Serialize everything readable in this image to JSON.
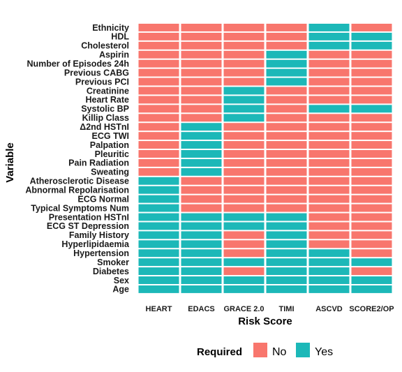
{
  "chart_data": {
    "type": "heatmap",
    "xlabel": "Risk Score",
    "ylabel": "Variable",
    "x_categories": [
      "HEART",
      "EDACS",
      "GRACE 2.0",
      "TIMI",
      "ASCVD",
      "SCORE2/OP"
    ],
    "y_categories_top_to_bottom": [
      "Ethnicity",
      "HDL",
      "Cholesterol",
      "Aspirin",
      "Number of Episodes 24h",
      "Previous CABG",
      "Previous PCI",
      "Creatinine",
      "Heart Rate",
      "Systolic BP",
      "Killip Class",
      "Δ2nd HSTnI",
      "ECG TWI",
      "Palpation",
      "Pleuritic",
      "Pain Radiation",
      "Sweating",
      "Atherosclerotic Disease",
      "Abnormal Repolarisation",
      "ECG Normal",
      "Typical Symptoms Num",
      "Presentation HSTnI",
      "ECG ST Depression",
      "Family History",
      "Hyperlipidaemia",
      "Hypertension",
      "Smoker",
      "Diabetes",
      "Sex",
      "Age"
    ],
    "values": [
      [
        "No",
        "No",
        "No",
        "No",
        "Yes",
        "No"
      ],
      [
        "No",
        "No",
        "No",
        "No",
        "Yes",
        "Yes"
      ],
      [
        "No",
        "No",
        "No",
        "No",
        "Yes",
        "Yes"
      ],
      [
        "No",
        "No",
        "No",
        "Yes",
        "No",
        "No"
      ],
      [
        "No",
        "No",
        "No",
        "Yes",
        "No",
        "No"
      ],
      [
        "No",
        "No",
        "No",
        "Yes",
        "No",
        "No"
      ],
      [
        "No",
        "No",
        "No",
        "Yes",
        "No",
        "No"
      ],
      [
        "No",
        "No",
        "Yes",
        "No",
        "No",
        "No"
      ],
      [
        "No",
        "No",
        "Yes",
        "No",
        "No",
        "No"
      ],
      [
        "No",
        "No",
        "Yes",
        "No",
        "Yes",
        "Yes"
      ],
      [
        "No",
        "No",
        "Yes",
        "No",
        "No",
        "No"
      ],
      [
        "No",
        "Yes",
        "No",
        "No",
        "No",
        "No"
      ],
      [
        "No",
        "Yes",
        "No",
        "No",
        "No",
        "No"
      ],
      [
        "No",
        "Yes",
        "No",
        "No",
        "No",
        "No"
      ],
      [
        "No",
        "Yes",
        "No",
        "No",
        "No",
        "No"
      ],
      [
        "No",
        "Yes",
        "No",
        "No",
        "No",
        "No"
      ],
      [
        "No",
        "Yes",
        "No",
        "No",
        "No",
        "No"
      ],
      [
        "Yes",
        "No",
        "No",
        "No",
        "No",
        "No"
      ],
      [
        "Yes",
        "No",
        "No",
        "No",
        "No",
        "No"
      ],
      [
        "Yes",
        "No",
        "No",
        "No",
        "No",
        "No"
      ],
      [
        "Yes",
        "No",
        "No",
        "No",
        "No",
        "No"
      ],
      [
        "Yes",
        "Yes",
        "Yes",
        "Yes",
        "No",
        "No"
      ],
      [
        "Yes",
        "Yes",
        "Yes",
        "Yes",
        "No",
        "No"
      ],
      [
        "Yes",
        "Yes",
        "No",
        "Yes",
        "No",
        "No"
      ],
      [
        "Yes",
        "Yes",
        "No",
        "Yes",
        "No",
        "No"
      ],
      [
        "Yes",
        "Yes",
        "No",
        "Yes",
        "Yes",
        "No"
      ],
      [
        "Yes",
        "Yes",
        "Yes",
        "Yes",
        "Yes",
        "Yes"
      ],
      [
        "Yes",
        "Yes",
        "No",
        "Yes",
        "Yes",
        "No"
      ],
      [
        "Yes",
        "Yes",
        "Yes",
        "Yes",
        "Yes",
        "Yes"
      ],
      [
        "Yes",
        "Yes",
        "Yes",
        "Yes",
        "Yes",
        "Yes"
      ]
    ],
    "legend": {
      "title": "Required",
      "placement": "bottom",
      "entries": [
        {
          "label": "No",
          "color": "#f8766d"
        },
        {
          "label": "Yes",
          "color": "#00bfc4"
        }
      ]
    },
    "colors": {
      "No": "#f8766d",
      "Yes": "#1cb8b8"
    }
  }
}
